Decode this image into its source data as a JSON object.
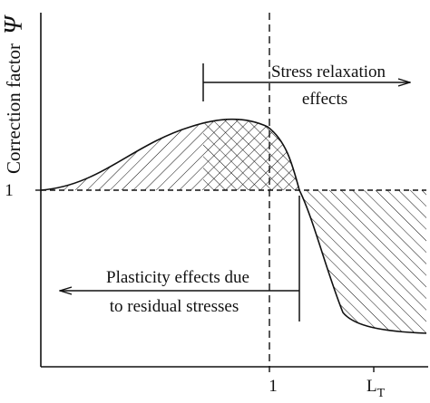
{
  "figure": {
    "y_axis_label": "Correction factor",
    "y_axis_symbol": "Ψ",
    "y_tick_label": "1",
    "x_tick_1": "1",
    "x_tick_lt_main": "L",
    "x_tick_lt_sub": "T",
    "stress_relaxation_line1": "Stress relaxation",
    "stress_relaxation_line2": "effects",
    "plasticity_line1": "Plasticity effects due",
    "plasticity_line2": "to residual stresses"
  }
}
